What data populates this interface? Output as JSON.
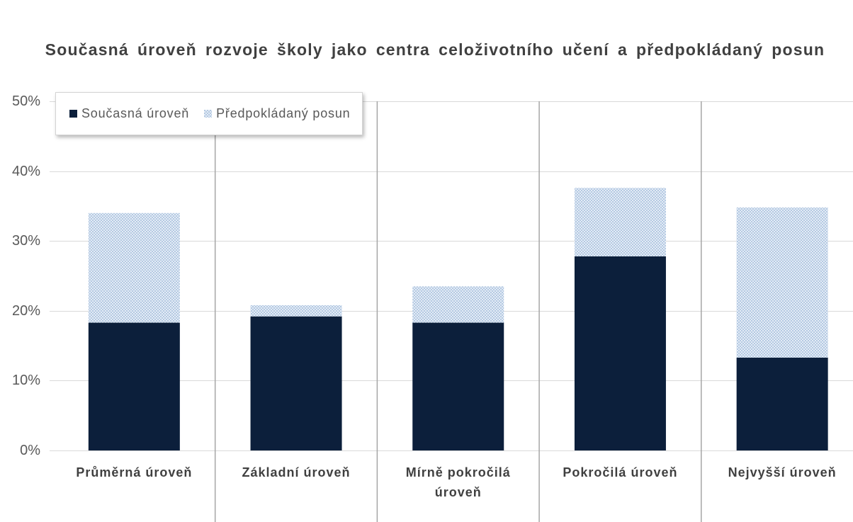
{
  "chart_data": {
    "type": "bar",
    "stacked": true,
    "title": "Současná úroveň rozvoje školy jako centra celoživotního učení a předpokládaný posun",
    "categories": [
      "Průměrná úroveň",
      "Základní úroveň",
      "Mírně pokročilá úroveň",
      "Pokročilá úroveň",
      "Nejvyšší úroveň"
    ],
    "series": [
      {
        "name": "Současná úroveň",
        "values": [
          18.3,
          19.2,
          18.3,
          27.8,
          13.3
        ],
        "color": "#0c1f3b"
      },
      {
        "name": "Předpokládaný posun",
        "values": [
          15.7,
          1.6,
          5.2,
          9.8,
          21.5
        ],
        "color": "#b4c9e2"
      }
    ],
    "ylim": [
      0,
      50
    ],
    "yticks": [
      0,
      10,
      20,
      30,
      40,
      50
    ],
    "ytick_labels": [
      "0%",
      "10%",
      "20%",
      "30%",
      "40%",
      "50%"
    ],
    "grid": true,
    "legend": "top-left",
    "colors": {
      "grid": "#d9d9d9",
      "separator": "#a6a6a6",
      "text": "#595959",
      "title": "#404040"
    }
  }
}
